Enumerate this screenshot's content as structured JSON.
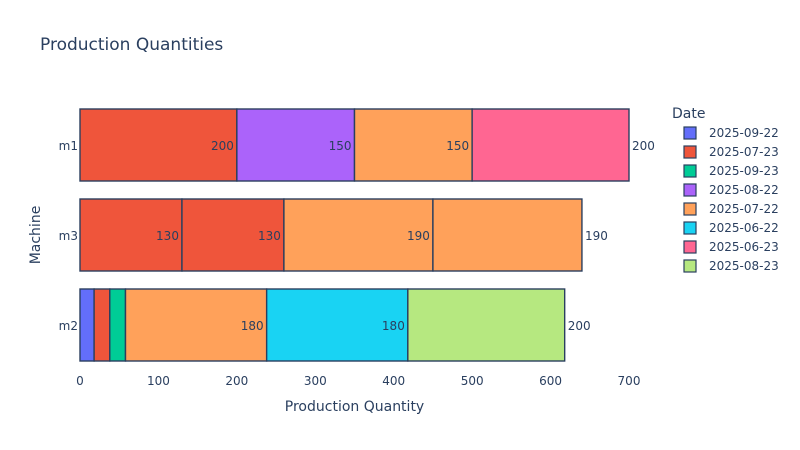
{
  "chart_data": {
    "type": "bar",
    "orientation": "horizontal",
    "barmode": "stack",
    "title": "Production Quantities",
    "xlabel": "Production Quantity",
    "ylabel": "Machine",
    "xlim": [
      0,
      700
    ],
    "x_ticks": [
      0,
      100,
      200,
      300,
      400,
      500,
      600,
      700
    ],
    "categories": [
      "m1",
      "m3",
      "m2"
    ],
    "legend_title": "Date",
    "legend_position": "right",
    "legend": [
      {
        "name": "2025-09-22",
        "color": "#636efa"
      },
      {
        "name": "2025-07-23",
        "color": "#ef553b"
      },
      {
        "name": "2025-09-23",
        "color": "#00cc96"
      },
      {
        "name": "2025-08-22",
        "color": "#ab63fa"
      },
      {
        "name": "2025-07-22",
        "color": "#ffa15a"
      },
      {
        "name": "2025-06-22",
        "color": "#19d3f3"
      },
      {
        "name": "2025-06-23",
        "color": "#ff6692"
      },
      {
        "name": "2025-08-23",
        "color": "#b6e880"
      }
    ],
    "segments": [
      {
        "category": "m1",
        "date": "2025-07-23",
        "value": 200,
        "label": "200"
      },
      {
        "category": "m1",
        "date": "2025-08-22",
        "value": 150,
        "label": "150"
      },
      {
        "category": "m1",
        "date": "2025-07-22",
        "value": 150,
        "label": "150"
      },
      {
        "category": "m1",
        "date": "2025-06-23",
        "value": 200,
        "label": "200"
      },
      {
        "category": "m3",
        "date": "2025-07-23",
        "value": 130,
        "label": "130"
      },
      {
        "category": "m3",
        "date": "2025-07-23",
        "value": 130,
        "label": "130"
      },
      {
        "category": "m3",
        "date": "2025-07-22",
        "value": 190,
        "label": "190"
      },
      {
        "category": "m3",
        "date": "2025-07-22",
        "value": 190,
        "label": "190"
      },
      {
        "category": "m2",
        "date": "2025-09-22",
        "value": 18,
        "label": ""
      },
      {
        "category": "m2",
        "date": "2025-07-23",
        "value": 20,
        "label": ""
      },
      {
        "category": "m2",
        "date": "2025-09-23",
        "value": 20,
        "label": ""
      },
      {
        "category": "m2",
        "date": "2025-07-22",
        "value": 180,
        "label": "180"
      },
      {
        "category": "m2",
        "date": "2025-06-22",
        "value": 180,
        "label": "180"
      },
      {
        "category": "m2",
        "date": "2025-08-23",
        "value": 200,
        "label": "200"
      }
    ],
    "grid": false
  }
}
